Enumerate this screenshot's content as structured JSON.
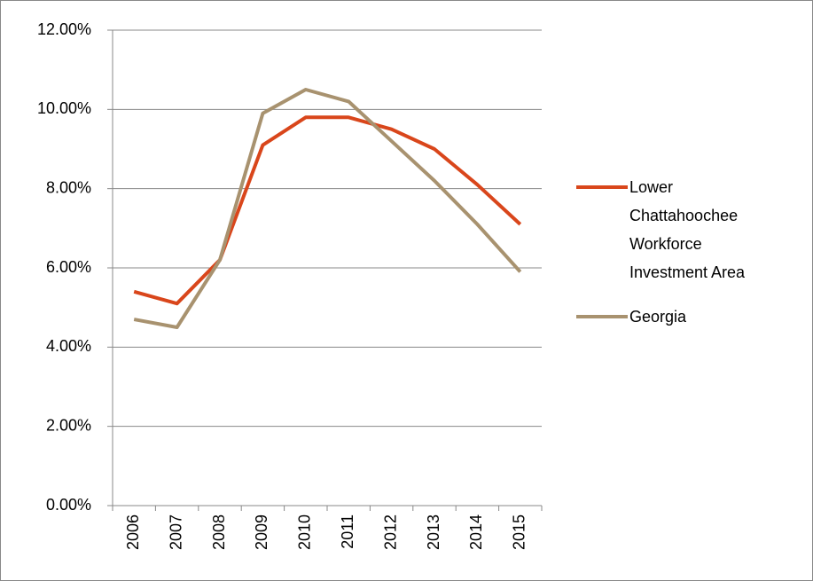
{
  "chart_data": {
    "type": "line",
    "categories": [
      "2006",
      "2007",
      "2008",
      "2009",
      "2010",
      "2011",
      "2012",
      "2013",
      "2014",
      "2015"
    ],
    "series": [
      {
        "name": "Lower Chattahoochee Workforce Investment Area",
        "color": "#d9461b",
        "values": [
          5.4,
          5.1,
          6.2,
          9.1,
          9.8,
          9.8,
          9.5,
          9.0,
          8.1,
          7.1
        ]
      },
      {
        "name": "Georgia",
        "color": "#a8926f",
        "values": [
          4.7,
          4.5,
          6.2,
          9.9,
          10.5,
          10.2,
          9.2,
          8.2,
          7.1,
          5.9
        ]
      }
    ],
    "ylim": [
      0,
      12
    ],
    "yticks": [
      {
        "value": 0,
        "label": "0.00%"
      },
      {
        "value": 2,
        "label": "2.00%"
      },
      {
        "value": 4,
        "label": "4.00%"
      },
      {
        "value": 6,
        "label": "6.00%"
      },
      {
        "value": 8,
        "label": "8.00%"
      },
      {
        "value": 10,
        "label": "10.00%"
      },
      {
        "value": 12,
        "label": "12.00%"
      }
    ],
    "grid": true,
    "legend": "right"
  }
}
